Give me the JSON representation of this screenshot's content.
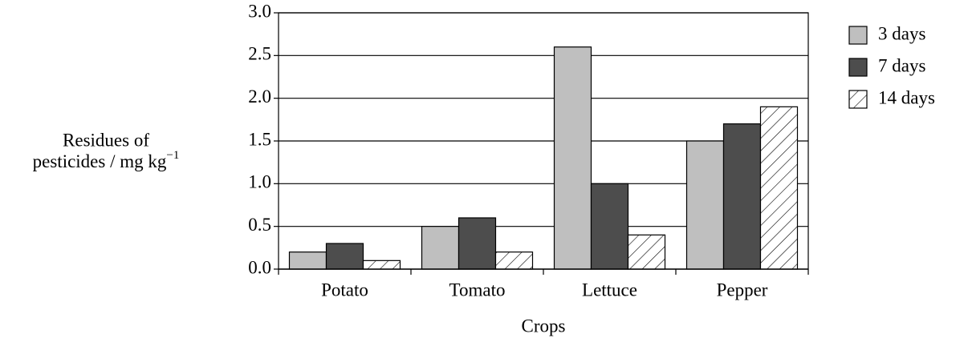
{
  "chart_data": {
    "type": "bar",
    "x_label": "Crops",
    "y_label": [
      "Residues of",
      "pesticides / mg kg"
    ],
    "y_label_superscript": "−1",
    "categories": [
      "Potato",
      "Tomato",
      "Lettuce",
      "Pepper"
    ],
    "series": [
      {
        "name": "3 days",
        "color": "#bfbfbf",
        "hatch": false,
        "values": [
          0.2,
          0.5,
          2.6,
          1.5
        ]
      },
      {
        "name": "7 days",
        "color": "#4d4d4d",
        "hatch": false,
        "values": [
          0.3,
          0.6,
          1.0,
          1.7
        ]
      },
      {
        "name": "14 days",
        "color": "#ffffff",
        "hatch": true,
        "values": [
          0.1,
          0.2,
          0.4,
          1.9
        ]
      }
    ],
    "ylim": [
      0,
      3
    ],
    "yticks": [
      {
        "value": 0,
        "label": "0.0"
      },
      0.5,
      {
        "value": 1,
        "label": "1.0"
      },
      1.5,
      {
        "value": 2,
        "label": "2.0"
      },
      2.5,
      {
        "value": 3,
        "label": "3.0"
      }
    ],
    "grid": true,
    "legend": "right"
  }
}
